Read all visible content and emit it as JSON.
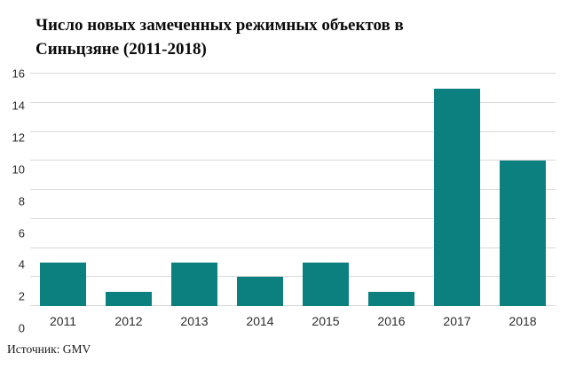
{
  "title": "Число новых замеченных режимных объектов в\nСиньцзяне (2011-2018)",
  "source_note": "Источник: GMV",
  "colors": {
    "bar": "#0c7f7f",
    "gridline": "#d9d9d9",
    "text": "#2b2b2b"
  },
  "chart_data": {
    "type": "bar",
    "title": "Число новых замеченных режимных объектов в\nСиньцзяне (2011-2018)",
    "categories": [
      "2011",
      "2012",
      "2013",
      "2014",
      "2015",
      "2016",
      "2017",
      "2018"
    ],
    "values": [
      3,
      1,
      3,
      2,
      3,
      1,
      15,
      10
    ],
    "xlabel": "",
    "ylabel": "",
    "ylim": [
      0,
      16
    ],
    "ytick_step": 2,
    "grid": true,
    "legend": false,
    "bar_color": "#0c7f7f",
    "gridline_color": "#d9d9d9",
    "source": "Источник: GMV"
  }
}
